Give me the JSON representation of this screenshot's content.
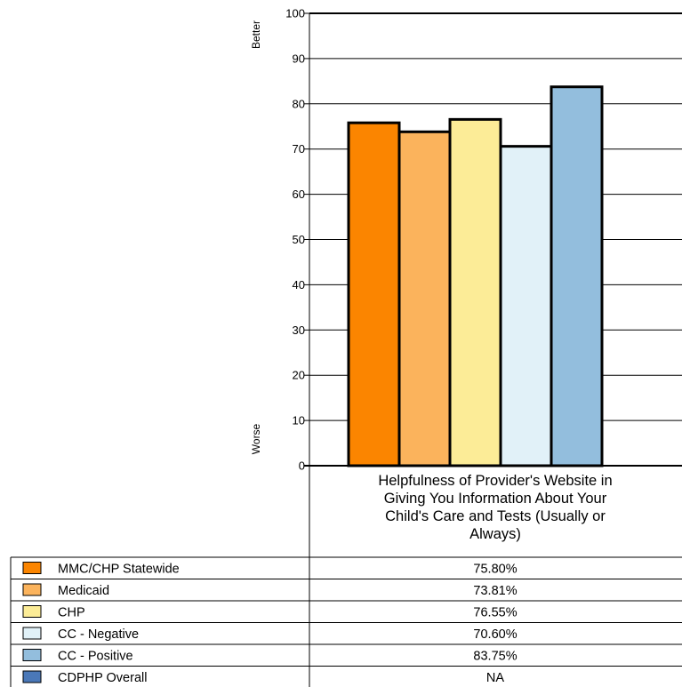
{
  "chart_data": {
    "type": "bar",
    "categories": [
      "Helpfulness of Provider's Website in Giving You Information About Your Child's Care and Tests (Usually or Always)"
    ],
    "category_label_lines": [
      "Helpfulness of Provider's Website in",
      "Giving You Information About Your",
      "Child's Care and Tests (Usually or",
      "Always)"
    ],
    "ylim": [
      0,
      100
    ],
    "yticks": [
      0,
      10,
      20,
      30,
      40,
      50,
      60,
      70,
      80,
      90,
      100
    ],
    "grid": true,
    "ylabel_top": "Better",
    "ylabel_bottom": "Worse",
    "series": [
      {
        "name": "MMC/CHP Statewide",
        "values": [
          75.8
        ],
        "display": "75.80%",
        "color": "#FB8500"
      },
      {
        "name": "Medicaid",
        "values": [
          73.81
        ],
        "display": "73.81%",
        "color": "#FBB35C"
      },
      {
        "name": "CHP",
        "values": [
          76.55
        ],
        "display": "76.55%",
        "color": "#FCEC97"
      },
      {
        "name": "CC - Negative",
        "values": [
          70.6
        ],
        "display": "70.60%",
        "color": "#E1F1F8"
      },
      {
        "name": "CC - Positive",
        "values": [
          83.75
        ],
        "display": "83.75%",
        "color": "#93BEDD"
      },
      {
        "name": "CDPHP Overall",
        "values": [
          null
        ],
        "display": "NA",
        "color": "#4A78B8"
      }
    ]
  }
}
